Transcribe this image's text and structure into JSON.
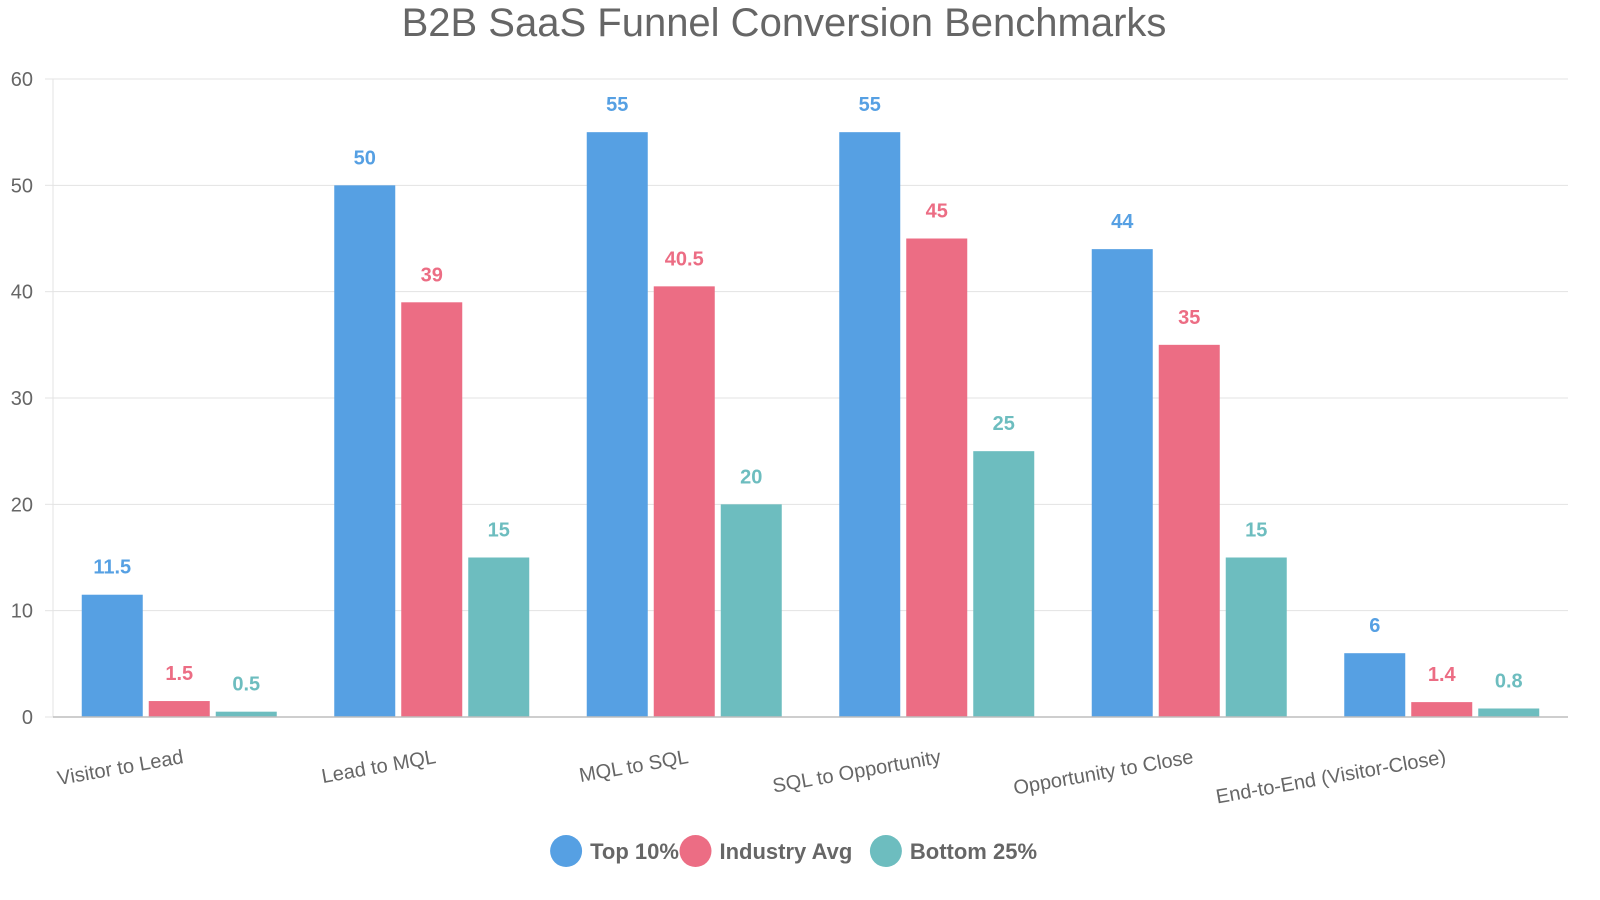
{
  "chart_data": {
    "type": "bar",
    "title": "B2B SaaS Funnel Conversion Benchmarks",
    "categories": [
      "Visitor to Lead",
      "Lead to MQL",
      "MQL to SQL",
      "SQL to Opportunity",
      "Opportunity to Close",
      "End-to-End (Visitor-Close)"
    ],
    "series": [
      {
        "name": "Top 10%",
        "color": "#56a0e3",
        "values": [
          11.5,
          50,
          55,
          55,
          44,
          6
        ]
      },
      {
        "name": "Industry Avg",
        "color": "#ec6d84",
        "values": [
          1.5,
          39,
          40.5,
          45,
          35,
          1.4
        ]
      },
      {
        "name": "Bottom 25%",
        "color": "#6dbdbf",
        "values": [
          0.5,
          15,
          20,
          25,
          15,
          0.8
        ]
      }
    ],
    "ylim": [
      0,
      60
    ],
    "yticks": [
      0,
      10,
      20,
      30,
      40,
      50,
      60
    ],
    "xlabel": "",
    "ylabel": "",
    "grid": true,
    "legend_position": "bottom",
    "data_labels": true
  }
}
